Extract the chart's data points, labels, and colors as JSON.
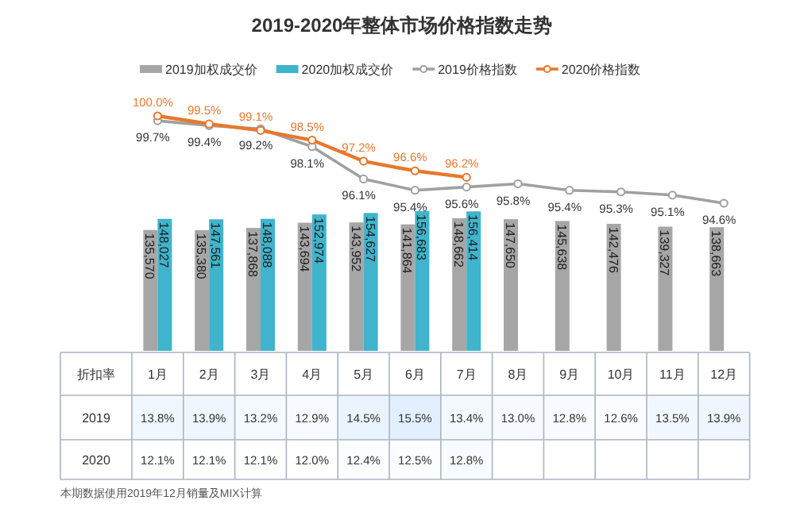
{
  "chart_data": [
    {
      "type": "line",
      "title": "2019-2020年整体市场价格指数走势",
      "categories": [
        null,
        null,
        null,
        null,
        null,
        null,
        null,
        null,
        null,
        null,
        null,
        null
      ],
      "legend": "top",
      "tick_labels": false,
      "marker": "circle",
      "series": [
        {
          "name": "2019价格指数",
          "color": "#a0a0a0",
          "values": [
            99.7,
            99.4,
            99.2,
            98.1,
            96.1,
            95.4,
            95.6,
            95.8,
            95.4,
            95.3,
            95.1,
            94.6
          ],
          "value_labels": [
            "99.7%",
            "99.4%",
            "99.2%",
            "98.1%",
            "96.1%",
            "95.4%",
            "95.6%",
            "95.8%",
            "95.4%",
            "95.3%",
            "95.1%",
            "94.6%"
          ]
        },
        {
          "name": "2020价格指数",
          "color": "#e8782c",
          "values": [
            100.0,
            99.5,
            99.1,
            98.5,
            97.2,
            96.6,
            96.2,
            null,
            null,
            null,
            null,
            null
          ],
          "value_labels": [
            "100.0%",
            "99.5%",
            "99.1%",
            "98.5%",
            "97.2%",
            "96.6%",
            "96.2%",
            null,
            null,
            null,
            null,
            null
          ]
        }
      ]
    },
    {
      "type": "bar",
      "xlabel": "折扣率",
      "categories": [
        "1月",
        "2月",
        "3月",
        "4月",
        "5月",
        "6月",
        "7月",
        "8月",
        "9月",
        "10月",
        "11月",
        "12月"
      ],
      "legend": "top",
      "tick_labels": "x",
      "series": [
        {
          "name": "2019加权成交价",
          "color": "#a6a6a6",
          "values": [
            135570,
            135380,
            137868,
            143694,
            143952,
            141864,
            148662,
            147650,
            145638,
            142476,
            139327,
            138663
          ],
          "value_labels": [
            "135,570",
            "135,380",
            "137,868",
            "143,694",
            "143,952",
            "141,864",
            "148,662",
            "147,650",
            "145,638",
            "142,476",
            "139,327",
            "138,663"
          ]
        },
        {
          "name": "2020加权成交价",
          "color": "#3fb4cc",
          "values": [
            148027,
            147561,
            148088,
            152974,
            154627,
            156683,
            156414,
            null,
            null,
            null,
            null,
            null
          ],
          "value_labels": [
            "148,027",
            "147,561",
            "148,088",
            "152,974",
            "154,627",
            "156,683",
            "156,414",
            null,
            null,
            null,
            null,
            null
          ]
        }
      ],
      "annotations": [
        "本期数据使用2019年12月销量及MIX计算"
      ]
    },
    {
      "type": "heatmap",
      "categories": [
        null,
        null,
        null,
        null,
        null,
        null,
        null,
        null,
        null,
        null,
        null,
        null
      ],
      "y_categories": [
        "2019",
        "2020"
      ],
      "cells": [
        [
          13.8,
          13.9,
          13.2,
          12.9,
          14.5,
          15.5,
          13.4,
          13.0,
          12.8,
          12.6,
          13.5,
          13.9
        ],
        [
          12.1,
          12.1,
          12.1,
          12.0,
          12.4,
          12.5,
          12.8,
          null,
          null,
          null,
          null,
          null
        ]
      ],
      "cell_labels": [
        [
          "13.8%",
          "13.9%",
          "13.2%",
          "12.9%",
          "14.5%",
          "15.5%",
          "13.4%",
          "13.0%",
          "12.8%",
          "12.6%",
          "13.5%",
          "13.9%"
        ],
        [
          "12.1%",
          "12.1%",
          "12.1%",
          "12.0%",
          "12.4%",
          "12.5%",
          "12.8%",
          null,
          null,
          null,
          null,
          null
        ]
      ]
    }
  ]
}
